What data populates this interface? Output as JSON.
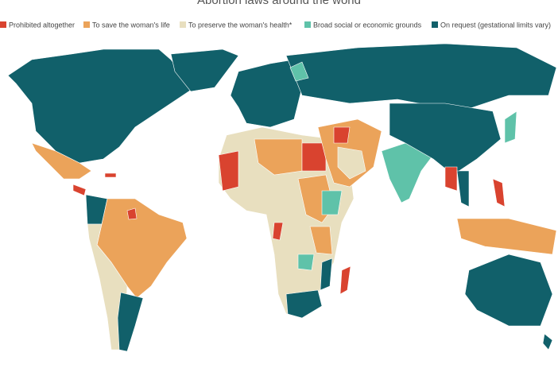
{
  "title": "Abortion laws around the world",
  "legend": [
    {
      "name": "Prohibited altogether",
      "color": "#d9432f"
    },
    {
      "name": "To save the woman's life",
      "color": "#eba35a"
    },
    {
      "name": "To preserve the woman's health*",
      "color": "#e8dfbf"
    },
    {
      "name": "Broad social or economic grounds",
      "color": "#5fc2a9"
    },
    {
      "name": "On request (gestational limits vary)",
      "color": "#11606a"
    }
  ]
}
